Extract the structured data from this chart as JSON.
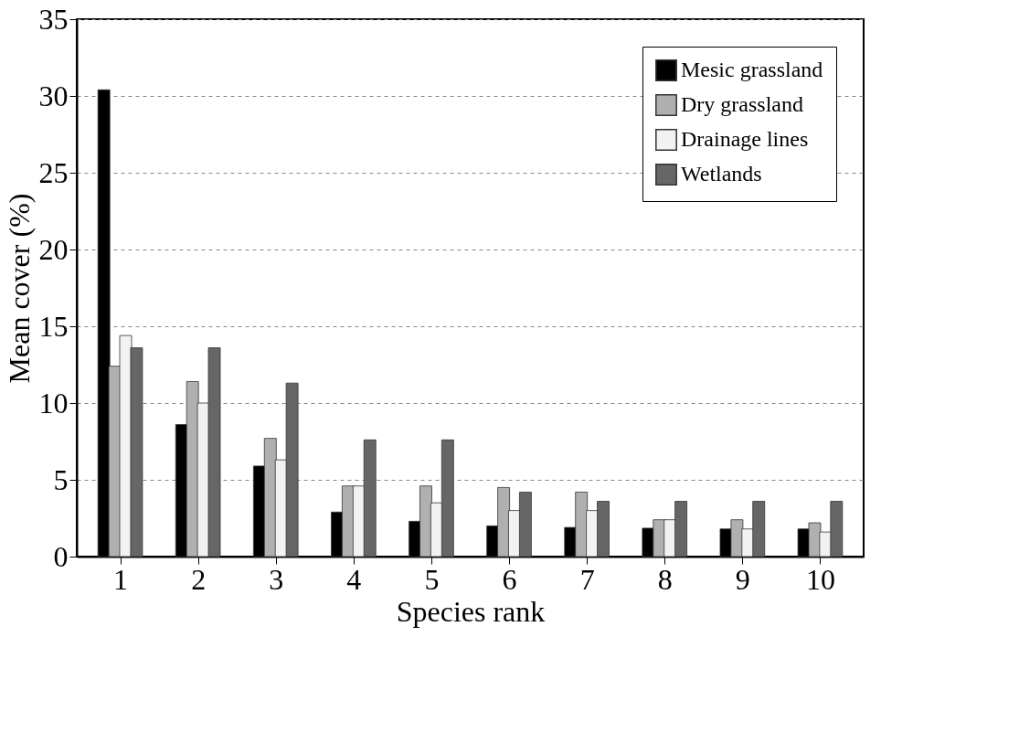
{
  "chart_data": {
    "type": "bar",
    "xlabel": "Species rank",
    "ylabel": "Mean cover (%)",
    "categories": [
      "1",
      "2",
      "3",
      "4",
      "5",
      "6",
      "7",
      "8",
      "9",
      "10"
    ],
    "series": [
      {
        "name": "Mesic grassland",
        "color": "#000000",
        "values": [
          30.4,
          8.6,
          5.9,
          2.9,
          2.3,
          2.0,
          1.9,
          1.85,
          1.8,
          1.8
        ]
      },
      {
        "name": "Dry grassland",
        "color": "#b0b0b0",
        "values": [
          12.4,
          11.4,
          7.7,
          4.6,
          4.6,
          4.5,
          4.2,
          2.4,
          2.4,
          2.2
        ]
      },
      {
        "name": "Drainage lines",
        "color": "#f2f2f2",
        "values": [
          14.4,
          10.0,
          6.3,
          4.6,
          3.5,
          3.0,
          3.0,
          2.4,
          1.8,
          1.6
        ]
      },
      {
        "name": "Wetlands",
        "color": "#666666",
        "values": [
          13.6,
          13.6,
          11.3,
          7.6,
          7.6,
          4.2,
          3.6,
          3.6,
          3.6,
          3.6
        ]
      }
    ],
    "ylim": [
      0,
      35
    ],
    "yticks": [
      0,
      5,
      10,
      15,
      20,
      25,
      30,
      35
    ],
    "grid": "y",
    "legend": "top right"
  }
}
